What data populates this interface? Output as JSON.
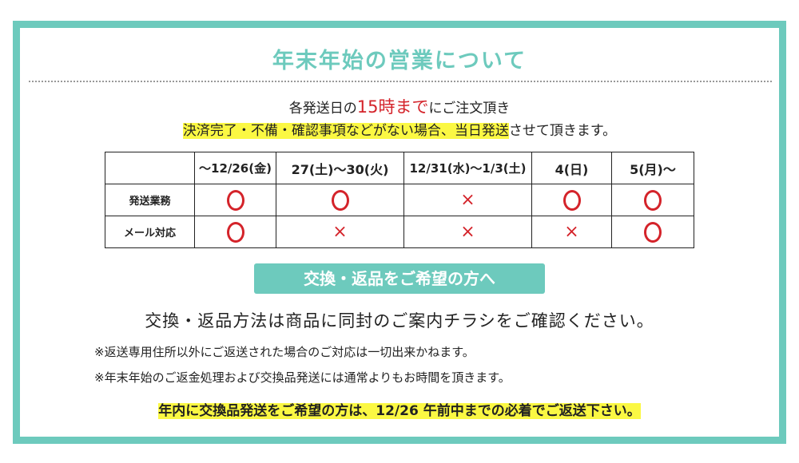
{
  "title": "年末年始の営業について",
  "notice": {
    "pre": "各発送日の",
    "emph": "15時まで",
    "post": "にご注文頂き",
    "line2_highlight": "決済完了・不備・確認事項などがない場合、当日発送",
    "line2_rest": "させて頂きます。"
  },
  "table": {
    "headers": [
      "",
      "～12/26(金)",
      "27(土)～30(火)",
      "12/31(水)～1/3(土)",
      "4(日)",
      "5(月)～"
    ],
    "rows": [
      {
        "label": "発送業務",
        "marks": [
          "o",
          "o",
          "x",
          "o",
          "o"
        ]
      },
      {
        "label": "メール対応",
        "marks": [
          "o",
          "x",
          "x",
          "x",
          "o"
        ]
      }
    ],
    "x_symbol": "×"
  },
  "returns": {
    "badge": "交換・返品をご希望の方へ",
    "main": "交換・返品方法は商品に同封のご案内チラシをご確認ください。",
    "note1": "※返送専用住所以外にご返送された場合のご対応は一切出来かねます。",
    "note2": "※年末年始のご返金処理および交換品発送には通常よりもお時間を頂きます。",
    "deadline": "年内に交換品発送をご希望の方は、12/26 午前中までの必着でご返送下さい。"
  },
  "colors": {
    "accent": "#6dcabd",
    "red": "#d4232a",
    "highlight": "#fbf843"
  }
}
